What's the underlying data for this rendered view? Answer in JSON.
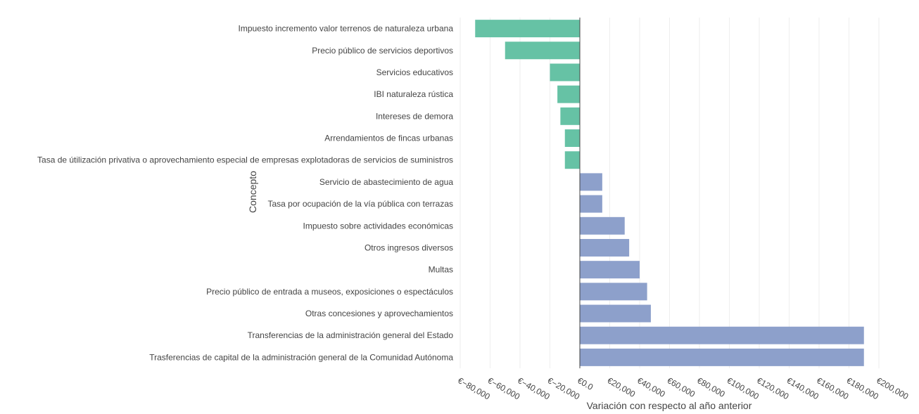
{
  "chart_data": {
    "type": "bar",
    "orientation": "horizontal",
    "xlabel": "Variación con respecto al año anterior",
    "ylabel": "Concepto",
    "xlim": [
      -80000,
      200000
    ],
    "x_ticks": [
      -80000,
      -60000,
      -40000,
      -20000,
      0,
      20000,
      40000,
      60000,
      80000,
      100000,
      120000,
      140000,
      160000,
      180000,
      200000
    ],
    "x_tick_labels": [
      "€−80,000",
      "€−60,000",
      "€−40,000",
      "€−20,000",
      "€0.0",
      "€20,000",
      "€40,000",
      "€60,000",
      "€80,000",
      "€100,000",
      "€120,000",
      "€140,000",
      "€160,000",
      "€180,000",
      "€200,000"
    ],
    "grid": "vertical",
    "colors": {
      "negative": "#66c2a5",
      "positive": "#8da0cb",
      "axis_text": "#444444",
      "grid": "#eeeeee",
      "zeroline": "#444444"
    },
    "categories": [
      "Impuesto incremento valor terrenos de naturaleza urbana",
      "Precio público de servicios deportivos",
      "Servicios educativos",
      "IBI naturaleza rústica",
      "Intereses de demora",
      "Arrendamientos de fincas urbanas",
      "Tasa de útilización privativa o aprovechamiento especial de empresas explotadoras de servicios de suministros",
      "Servicio de abastecimiento de agua",
      "Tasa por ocupación de la vía pública con terrazas",
      "Impuesto sobre actividades económicas",
      "Otros ingresos diversos",
      "Multas",
      "Precio público de entrada a museos, exposiciones o espectáculos",
      "Otras concesiones y aprovechamientos",
      "Transferencias de la administración general del Estado",
      "Trasferencias de capital de la administración general de la Comunidad Autónoma"
    ],
    "values": [
      -70000,
      -50000,
      -20000,
      -15000,
      -13000,
      -10000,
      -10000,
      15000,
      15000,
      30000,
      33000,
      40000,
      45000,
      47500,
      190000,
      190000
    ]
  }
}
